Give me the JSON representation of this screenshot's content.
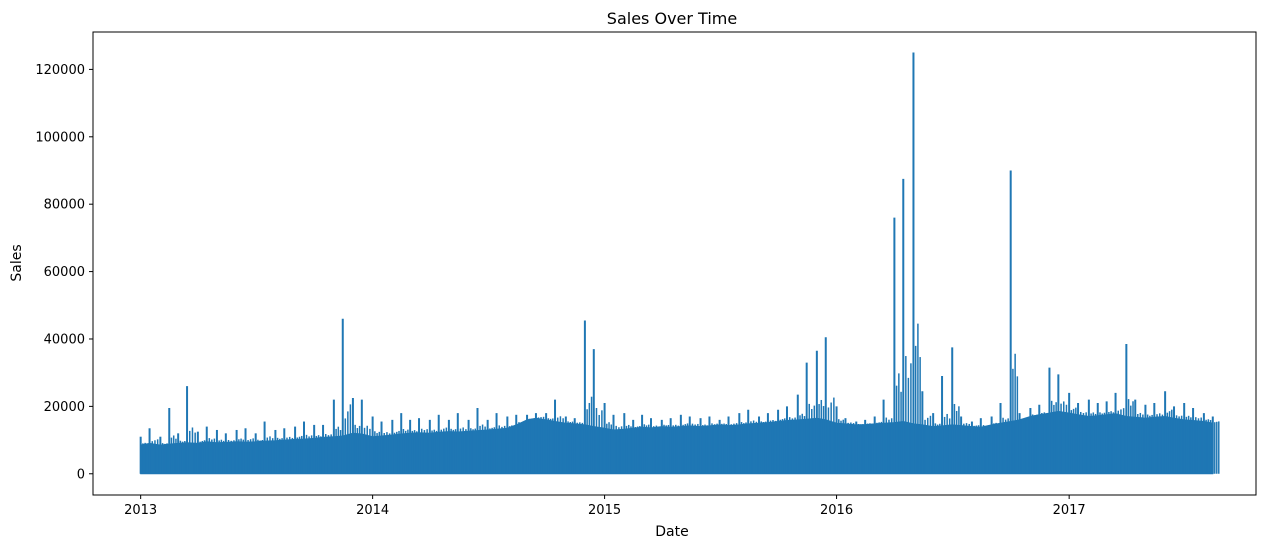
{
  "chart_data": {
    "type": "line",
    "title": "Sales Over Time",
    "xlabel": "Date",
    "ylabel": "Sales",
    "x_range": [
      "2012-10-18",
      "2017-10-22"
    ],
    "ylim": [
      -6300,
      131100
    ],
    "x_ticks": [
      {
        "date": "2013-01-01",
        "label": "2013"
      },
      {
        "date": "2014-01-01",
        "label": "2014"
      },
      {
        "date": "2015-01-01",
        "label": "2015"
      },
      {
        "date": "2016-01-01",
        "label": "2016"
      },
      {
        "date": "2017-01-01",
        "label": "2017"
      }
    ],
    "y_ticks": [
      {
        "value": 0,
        "label": "0"
      },
      {
        "value": 20000,
        "label": "20000"
      },
      {
        "value": 40000,
        "label": "40000"
      },
      {
        "value": 60000,
        "label": "60000"
      },
      {
        "value": 80000,
        "label": "80000"
      },
      {
        "value": 100000,
        "label": "100000"
      },
      {
        "value": 120000,
        "label": "120000"
      }
    ],
    "grid": false,
    "line_color": "#1f77b4",
    "series": [
      {
        "x": [
          "2013-01-01",
          "2013-01-15",
          "2013-02-01",
          "2013-02-15",
          "2013-03-01",
          "2013-03-15",
          "2013-04-01",
          "2013-04-15",
          "2013-05-01",
          "2013-05-15",
          "2013-06-01",
          "2013-06-15",
          "2013-07-01",
          "2013-07-15",
          "2013-08-01",
          "2013-08-15",
          "2013-09-01",
          "2013-09-15",
          "2013-10-01",
          "2013-10-15",
          "2013-11-01",
          "2013-11-15",
          "2013-12-01",
          "2013-12-15",
          "2014-01-01",
          "2014-01-15",
          "2014-02-01",
          "2014-02-15",
          "2014-03-01",
          "2014-03-15",
          "2014-04-01",
          "2014-04-15",
          "2014-05-01",
          "2014-05-15",
          "2014-06-01",
          "2014-06-15",
          "2014-07-01",
          "2014-07-15",
          "2014-08-01",
          "2014-08-15",
          "2014-09-01",
          "2014-09-15",
          "2014-10-01",
          "2014-10-15",
          "2014-11-01",
          "2014-11-15",
          "2014-12-01",
          "2014-12-15",
          "2015-01-01",
          "2015-01-15",
          "2015-02-01",
          "2015-02-15",
          "2015-03-01",
          "2015-03-15",
          "2015-04-01",
          "2015-04-15",
          "2015-05-01",
          "2015-05-15",
          "2015-06-01",
          "2015-06-15",
          "2015-07-01",
          "2015-07-15",
          "2015-08-01",
          "2015-08-15",
          "2015-09-01",
          "2015-09-15",
          "2015-10-01",
          "2015-10-15",
          "2015-11-01",
          "2015-11-15",
          "2015-12-01",
          "2015-12-15",
          "2016-01-01",
          "2016-01-15",
          "2016-02-01",
          "2016-02-15",
          "2016-03-01",
          "2016-03-15",
          "2016-04-01",
          "2016-04-15",
          "2016-05-01",
          "2016-05-15",
          "2016-06-01",
          "2016-06-15",
          "2016-07-01",
          "2016-07-15",
          "2016-08-01",
          "2016-08-15",
          "2016-09-01",
          "2016-09-15",
          "2016-10-01",
          "2016-10-15",
          "2016-11-01",
          "2016-11-15",
          "2016-12-01",
          "2016-12-15",
          "2017-01-01",
          "2017-01-15",
          "2017-02-01",
          "2017-02-15",
          "2017-03-01",
          "2017-03-15",
          "2017-04-01",
          "2017-04-15",
          "2017-05-01",
          "2017-05-15",
          "2017-06-01",
          "2017-06-15",
          "2017-07-01",
          "2017-07-15",
          "2017-08-01",
          "2017-08-15"
        ],
        "y_max": [
          11000,
          13500,
          11000,
          19500,
          12000,
          26000,
          12500,
          14000,
          13000,
          12000,
          13000,
          13500,
          12000,
          15500,
          13000,
          13500,
          14000,
          15500,
          14500,
          14500,
          22000,
          46000,
          22500,
          22000,
          17000,
          15500,
          16000,
          18000,
          16000,
          16500,
          16000,
          17500,
          16000,
          18000,
          16000,
          19500,
          16000,
          18000,
          17000,
          17500,
          17500,
          18000,
          18000,
          22000,
          17000,
          16500,
          45500,
          37000,
          21000,
          17500,
          18000,
          16000,
          17500,
          16500,
          16000,
          16500,
          17500,
          17000,
          16500,
          17000,
          16000,
          17000,
          18000,
          19000,
          17000,
          18000,
          19000,
          20000,
          23500,
          33000,
          36500,
          40500,
          20000,
          16500,
          15500,
          16000,
          17000,
          22000,
          76000,
          87500,
          125000,
          24500,
          18000,
          29000,
          37500,
          17000,
          15500,
          16500,
          17000,
          21000,
          90000,
          18000,
          19500,
          20500,
          31500,
          29500,
          24000,
          21000,
          22000,
          21000,
          21500,
          24000,
          38500,
          22000,
          20500,
          21000,
          24500,
          20000,
          21000,
          19500,
          18000,
          17000
        ],
        "y_base": [
          8500,
          9000,
          8500,
          8800,
          9000,
          9200,
          9000,
          9500,
          9200,
          9300,
          9500,
          9400,
          9500,
          9700,
          9800,
          10000,
          10200,
          10300,
          10500,
          10800,
          11000,
          11200,
          12000,
          11800,
          11000,
          11200,
          11500,
          11800,
          12000,
          12200,
          12000,
          12300,
          12500,
          12400,
          12600,
          12800,
          13000,
          13200,
          13500,
          14500,
          16000,
          16500,
          16000,
          15500,
          15000,
          14800,
          14500,
          14000,
          13500,
          13000,
          13200,
          13500,
          13800,
          13600,
          14000,
          13800,
          14000,
          14200,
          14000,
          14200,
          14500,
          14300,
          14500,
          14800,
          15000,
          15200,
          15500,
          15800,
          16000,
          16200,
          16500,
          16000,
          15000,
          14800,
          14500,
          14600,
          14800,
          15000,
          15200,
          15500,
          14800,
          14500,
          14000,
          14200,
          14500,
          14300,
          14000,
          13800,
          14500,
          15000,
          15500,
          16000,
          17000,
          17500,
          18000,
          18500,
          18000,
          17500,
          17000,
          17200,
          17500,
          17800,
          17000,
          16800,
          16500,
          16800,
          17000,
          16500,
          16000,
          15800,
          15500,
          15000
        ]
      }
    ]
  }
}
